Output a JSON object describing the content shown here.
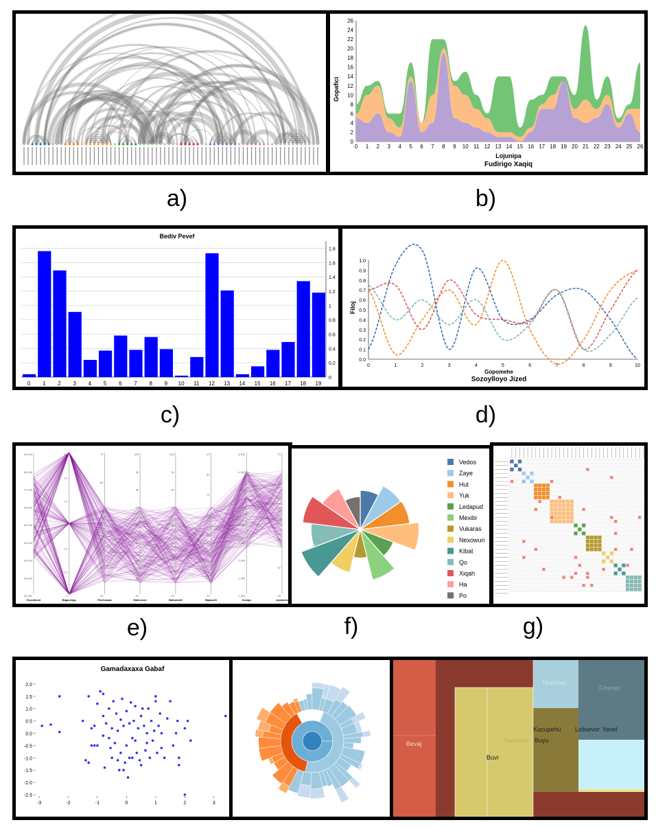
{
  "captions": {
    "a": "a)",
    "b": "b)",
    "c": "c)",
    "d": "d)",
    "e": "e)",
    "f": "f)",
    "g": "g)"
  },
  "chart_data": [
    {
      "id": "a",
      "type": "arc-diagram",
      "description_color": "#888888",
      "node_colors": [
        "#1f77b4",
        "#ff7f0e",
        "#ff9a3c",
        "#2ca02c",
        "#98df8a",
        "#d62728",
        "#9467bd",
        "#e377c2",
        "#bbbbbb"
      ],
      "node_count": 72
    },
    {
      "id": "b",
      "type": "area",
      "title": "Fudirigo Xaqiq",
      "xlabel": "Lojunipa",
      "ylabel": "Gopafici",
      "ylim": [
        0,
        26
      ],
      "yticks": [
        "0",
        "2",
        "4",
        "6",
        "8",
        "10",
        "12",
        "14",
        "16",
        "18",
        "20",
        "22",
        "24",
        "26"
      ],
      "x": [
        0,
        1,
        2,
        3,
        4,
        5,
        6,
        7,
        8,
        9,
        10,
        11,
        12,
        13,
        14,
        15,
        16,
        17,
        18,
        19,
        20,
        21,
        22,
        23,
        24,
        25,
        26
      ],
      "series": [
        {
          "color": "#b7a2d6",
          "values": [
            5,
            4,
            6,
            2,
            1,
            13,
            2,
            4,
            19,
            5,
            4,
            3,
            2,
            1,
            1,
            0,
            2,
            7,
            7,
            13,
            5,
            4,
            5,
            8,
            3,
            6,
            2
          ]
        },
        {
          "color": "#fdbe85",
          "values": [
            1,
            6,
            6,
            3,
            2,
            1,
            2,
            6,
            1,
            7,
            6,
            4,
            3,
            1,
            1,
            1,
            1,
            1,
            3,
            0,
            2,
            5,
            2,
            2,
            1,
            1,
            5
          ]
        },
        {
          "color": "#74c476",
          "values": [
            2,
            2,
            1,
            1,
            3,
            3,
            0,
            12,
            2,
            1,
            5,
            3,
            1,
            12,
            12,
            2,
            6,
            2,
            4,
            1,
            3,
            16,
            2,
            4,
            1,
            1,
            10
          ]
        }
      ]
    },
    {
      "id": "c",
      "type": "bar",
      "title": "Bediv Pevef",
      "color": "#0000ff",
      "categories": [
        "0",
        "1",
        "2",
        "3",
        "4",
        "5",
        "6",
        "7",
        "8",
        "9",
        "10",
        "11",
        "12",
        "13",
        "14",
        "15",
        "16",
        "17",
        "18",
        "19"
      ],
      "values": [
        0.04,
        1.76,
        1.49,
        0.91,
        0.24,
        0.37,
        0.58,
        0.38,
        0.56,
        0.39,
        0.02,
        0.28,
        1.73,
        1.21,
        0.04,
        0.15,
        0.38,
        0.49,
        1.34,
        1.18
      ],
      "ylim": [
        0,
        1.9
      ],
      "yticks": [
        "0",
        "0.2",
        "0.4",
        "0.6",
        "0.8",
        "1",
        "1.2",
        "1.4",
        "1.6",
        "1.8"
      ]
    },
    {
      "id": "d",
      "type": "line",
      "title": "Sozoylloyo Jized",
      "xlabel": "Gopomehe",
      "ylabel": "Filoj",
      "xlim": [
        0,
        10
      ],
      "ylim": [
        0,
        1
      ],
      "xticks": [
        "0",
        "1",
        "2",
        "3",
        "4",
        "5",
        "6",
        "7",
        "8",
        "9",
        "10"
      ],
      "yticks": [
        "0.0",
        "0.1",
        "0.2",
        "0.3",
        "0.4",
        "0.5",
        "0.6",
        "0.7",
        "0.8",
        "0.9",
        "1.0"
      ],
      "series": [
        {
          "color": "#3a6fb0",
          "values": [
            0.1,
            0.95,
            1.1,
            0.1,
            0.92,
            0.4,
            0.4,
            0.65,
            0.7,
            0.4,
            0.0
          ]
        },
        {
          "color": "#f28e2b",
          "values": [
            0.7,
            0.05,
            0.4,
            0.7,
            0.35,
            1.0,
            0.3,
            -0.05,
            0.2,
            0.7,
            0.9
          ]
        },
        {
          "color": "#e15759",
          "values": [
            0.7,
            0.75,
            0.3,
            0.8,
            0.45,
            0.4,
            0.38,
            0.7,
            0.1,
            0.5,
            0.9
          ]
        },
        {
          "color": "#76b7b2",
          "values": [
            0.75,
            0.4,
            0.6,
            0.35,
            0.6,
            0.2,
            0.35,
            0.7,
            0.1,
            0.25,
            0.62
          ]
        }
      ]
    },
    {
      "id": "e",
      "type": "parallel-coordinates",
      "color": "#8b1a9a",
      "axes": [
        "Ecculticed",
        "Bigaceliqa",
        "Pizehosaw",
        "Bafesecol",
        "Bafodeofil",
        "Bajaxofil",
        "Vosiqo",
        "Jowbeleo"
      ],
      "axis_ticks": [
        [
          "90,000",
          "80,000",
          "70,000",
          "60,000",
          "50,000",
          "40,000",
          "30,000",
          "20,000",
          "10,000"
        ],
        [
          "3.0",
          "2.5",
          "2.0",
          "1.5",
          "1.0",
          "0.5",
          "0"
        ],
        [
          "70",
          "60",
          "50",
          "40",
          "30",
          "20"
        ],
        [
          "100",
          "90",
          "80",
          "70",
          "60",
          "50",
          "40",
          "30",
          "20"
        ],
        [
          "100",
          "90",
          "80",
          "70",
          "60",
          "50",
          "40",
          "30",
          "20"
        ],
        [
          "90",
          "80",
          "70",
          "60",
          "50",
          "40",
          "30",
          "20"
        ],
        [
          "5,000",
          "4,500",
          "4,000",
          "3,500",
          "3,000",
          "2,500",
          "2,000",
          "1,500",
          "1,000"
        ],
        [
          "70",
          "60",
          "50",
          "40",
          "30",
          "20"
        ]
      ]
    },
    {
      "id": "f",
      "type": "pie",
      "labels": [
        "Vedos",
        "Zaye",
        "Hut",
        "Yuk",
        "Ledapud",
        "Mexibi",
        "Vukaras",
        "Nexowun",
        "Kibat",
        "Qo",
        "Xiqah",
        "Ha",
        "Po"
      ],
      "colors": [
        "#4e79a7",
        "#9ecae9",
        "#f28e2b",
        "#ffbe7d",
        "#59a14f",
        "#8cd17d",
        "#b6992d",
        "#f1ce63",
        "#499894",
        "#86bcb6",
        "#e15759",
        "#ff9d9a",
        "#79706e"
      ],
      "values": [
        0.62,
        0.78,
        0.79,
        0.93,
        0.56,
        0.82,
        0.45,
        0.7,
        1.0,
        0.78,
        0.92,
        0.73,
        0.52
      ]
    },
    {
      "id": "g",
      "type": "heatmap",
      "groups": [
        {
          "color": "#4e79a7",
          "size": 3
        },
        {
          "color": "#9ecae9",
          "size": 3
        },
        {
          "color": "#f28e2b",
          "size": 4
        },
        {
          "color": "#ffbe7d",
          "size": 6
        },
        {
          "color": "#59a14f",
          "size": 3
        },
        {
          "color": "#b6992d",
          "size": 4
        },
        {
          "color": "#f1ce63",
          "size": 3
        },
        {
          "color": "#499894",
          "size": 3
        },
        {
          "color": "#86bcb6",
          "size": 4
        }
      ],
      "offdiag_color": "#f28070"
    },
    {
      "id": "h",
      "type": "scatter",
      "title": "Gamadaxaxa Gabaf",
      "color": "#3333ee",
      "xlim": [
        -3,
        3.5
      ],
      "ylim": [
        -2.5,
        2.25
      ],
      "xticks": [
        "-3",
        "-2",
        "-1",
        "0",
        "1",
        "2",
        "3"
      ],
      "yticks": [
        "2.0",
        "1.5",
        "1.0",
        "0.5",
        "0.0",
        "-0.5",
        "-1.0",
        "-1.5",
        "-2.0",
        "-2.5"
      ],
      "points": [
        [
          -2.9,
          0.3
        ],
        [
          -2.6,
          0.35
        ],
        [
          -2.3,
          1.5
        ],
        [
          -2.3,
          0.05
        ],
        [
          -1.5,
          0.5
        ],
        [
          -1.3,
          1.5
        ],
        [
          -1.4,
          -1.1
        ],
        [
          -1.3,
          -1.2
        ],
        [
          -1.2,
          0.2
        ],
        [
          -1.2,
          -0.5
        ],
        [
          -1.1,
          -0.5
        ],
        [
          -1.0,
          -0.5
        ],
        [
          -1.1,
          0.3
        ],
        [
          -1.0,
          1.2
        ],
        [
          -0.9,
          1.7
        ],
        [
          -0.8,
          1.6
        ],
        [
          -0.8,
          0.7
        ],
        [
          -0.8,
          -0.1
        ],
        [
          -0.75,
          -1.4
        ],
        [
          -0.7,
          0.4
        ],
        [
          -0.6,
          1.0
        ],
        [
          -0.6,
          -0.2
        ],
        [
          -0.55,
          -0.6
        ],
        [
          -0.5,
          0.2
        ],
        [
          -0.5,
          -1.0
        ],
        [
          -0.45,
          1.3
        ],
        [
          -0.4,
          -0.4
        ],
        [
          -0.35,
          0.8
        ],
        [
          -0.3,
          0.1
        ],
        [
          -0.3,
          -1.1
        ],
        [
          -0.25,
          -1.5
        ],
        [
          -0.2,
          0.55
        ],
        [
          -0.2,
          -0.8
        ],
        [
          -0.15,
          1.4
        ],
        [
          -0.1,
          0.3
        ],
        [
          -0.1,
          -1.5
        ],
        [
          -0.05,
          -1.2
        ],
        [
          0.0,
          0.9
        ],
        [
          0.0,
          -0.5
        ],
        [
          0.05,
          -1.8
        ],
        [
          0.1,
          0.4
        ],
        [
          0.1,
          -1.0
        ],
        [
          0.15,
          1.25
        ],
        [
          0.2,
          -0.2
        ],
        [
          0.2,
          -1.0
        ],
        [
          0.25,
          0.5
        ],
        [
          0.3,
          -0.3
        ],
        [
          0.3,
          1.1
        ],
        [
          0.35,
          -0.8
        ],
        [
          0.4,
          0.2
        ],
        [
          0.45,
          -1.1
        ],
        [
          0.5,
          0.7
        ],
        [
          0.5,
          -1.3
        ],
        [
          0.55,
          1.0
        ],
        [
          0.6,
          0.3
        ],
        [
          0.65,
          -0.7
        ],
        [
          0.7,
          -0.4
        ],
        [
          0.7,
          0.0
        ],
        [
          0.75,
          1.0
        ],
        [
          0.8,
          -1.0
        ],
        [
          0.85,
          0.5
        ],
        [
          0.9,
          -0.3
        ],
        [
          0.95,
          0.1
        ],
        [
          1.0,
          1.3
        ],
        [
          1.0,
          1.5
        ],
        [
          1.05,
          -0.8
        ],
        [
          1.1,
          0.3
        ],
        [
          1.15,
          0.8
        ],
        [
          1.2,
          -0.6
        ],
        [
          1.2,
          0.0
        ],
        [
          1.3,
          -1.0
        ],
        [
          1.4,
          0.6
        ],
        [
          1.5,
          1.3
        ],
        [
          1.6,
          -0.5
        ],
        [
          1.7,
          0.0
        ],
        [
          1.75,
          0.5
        ],
        [
          1.8,
          -1.0
        ],
        [
          1.8,
          -1.3
        ],
        [
          2.0,
          0.2
        ],
        [
          2.0,
          -2.5
        ],
        [
          2.1,
          0.5
        ],
        [
          2.2,
          -0.3
        ],
        [
          3.4,
          0.7
        ]
      ]
    },
    {
      "id": "i",
      "type": "sunburst",
      "colors": [
        "#3182bd",
        "#6baed6",
        "#9ecae1",
        "#c6dbef",
        "#e6550d",
        "#fd8d3c",
        "#fdae6b",
        "#fdd0a2"
      ]
    },
    {
      "id": "j",
      "type": "treemap",
      "labels": [
        "Bevaj",
        "Buvi",
        "Nunuxas",
        "Buyu",
        "Kucupehu",
        "Lolisevor",
        "Yevel",
        "Huyener",
        "Fibonet"
      ]
    }
  ]
}
